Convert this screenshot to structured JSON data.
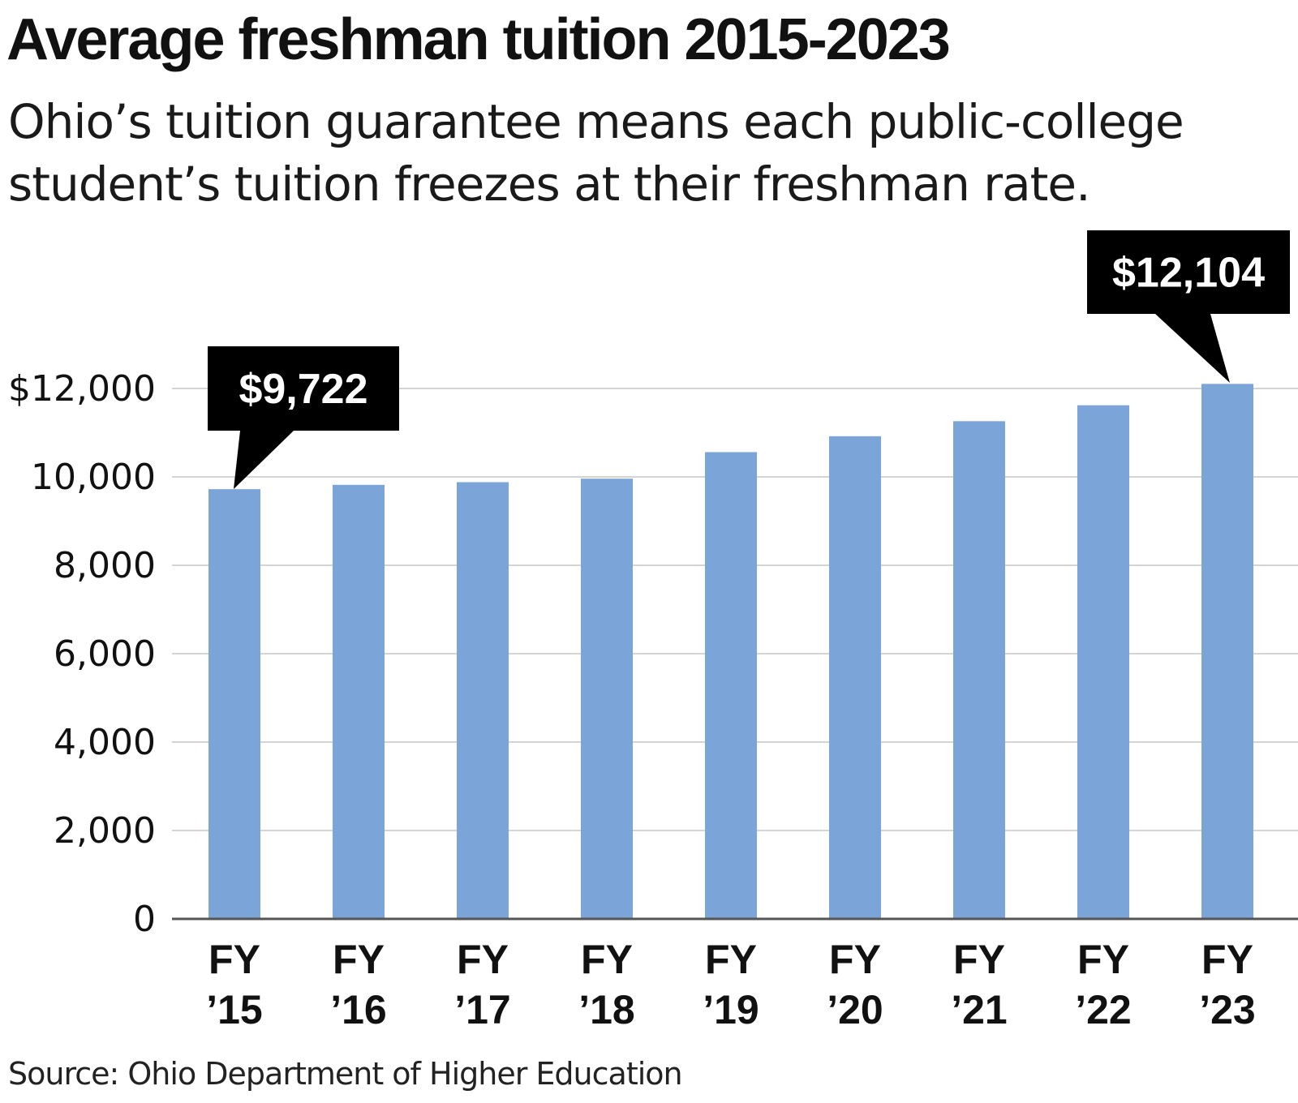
{
  "title": "Average freshman tuition 2015-2023",
  "subtitle": "Ohio’s tuition guarantee means each public-college student’s tuition freezes at their freshman rate.",
  "source": "Source: Ohio Department of Higher Education",
  "colors": {
    "bar": "#7ba4d8",
    "grid": "#d4d4d4",
    "axis": "#555555",
    "callout": "#000000"
  },
  "chart_data": {
    "type": "bar",
    "title": "Average freshman tuition 2015-2023",
    "subtitle": "Ohio’s tuition guarantee means each public-college student’s tuition freezes at their freshman rate.",
    "categories": [
      "FY ’15",
      "FY ’16",
      "FY ’17",
      "FY ’18",
      "FY ’19",
      "FY ’20",
      "FY ’21",
      "FY ’22",
      "FY ’23"
    ],
    "category_lines": [
      [
        "FY",
        "’15"
      ],
      [
        "FY",
        "’16"
      ],
      [
        "FY",
        "’17"
      ],
      [
        "FY",
        "’18"
      ],
      [
        "FY",
        "’19"
      ],
      [
        "FY",
        "’20"
      ],
      [
        "FY",
        "’21"
      ],
      [
        "FY",
        "’22"
      ],
      [
        "FY",
        "’23"
      ]
    ],
    "values": [
      9722,
      9820,
      9880,
      9960,
      10560,
      10920,
      11260,
      11620,
      12104
    ],
    "ylim": [
      0,
      12000
    ],
    "yticks": [
      0,
      2000,
      4000,
      6000,
      8000,
      10000,
      12000
    ],
    "ytick_labels": [
      "0",
      "2,000",
      "4,000",
      "6,000",
      "8,000",
      "10,000",
      "$12,000"
    ],
    "grid": true,
    "xlabel": "",
    "ylabel": "",
    "annotations": [
      {
        "category_index": 0,
        "text": "$9,722"
      },
      {
        "category_index": 8,
        "text": "$12,104"
      }
    ]
  }
}
